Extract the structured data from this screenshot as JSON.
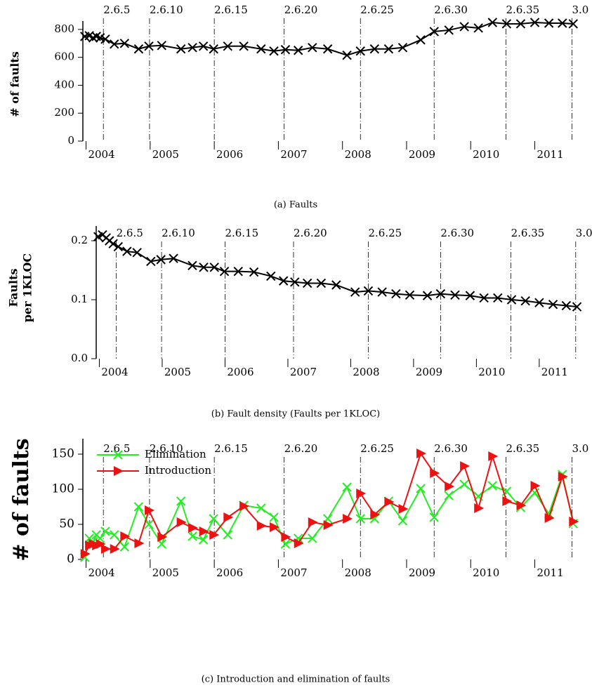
{
  "chart_data": [
    {
      "type": "line",
      "caption": "(a)  Faults",
      "ylabel": [
        "# of faults"
      ],
      "x": [
        2003.98,
        2004.05,
        2004.11,
        2004.16,
        2004.22,
        2004.3,
        2004.44,
        2004.6,
        2004.82,
        2004.98,
        2005.18,
        2005.48,
        2005.66,
        2005.83,
        2005.99,
        2006.21,
        2006.46,
        2006.73,
        2006.93,
        2007.11,
        2007.31,
        2007.53,
        2007.77,
        2008.07,
        2008.28,
        2008.5,
        2008.72,
        2008.94,
        2009.22,
        2009.43,
        2009.66,
        2009.9,
        2010.12,
        2010.34,
        2010.56,
        2010.78,
        2011.0,
        2011.22,
        2011.43,
        2011.6
      ],
      "series": [
        {
          "color": "#000000",
          "marker": "x",
          "values": [
            750,
            755,
            740,
            750,
            740,
            730,
            695,
            700,
            660,
            680,
            685,
            660,
            670,
            680,
            660,
            680,
            680,
            660,
            645,
            655,
            650,
            670,
            660,
            615,
            645,
            660,
            660,
            670,
            725,
            785,
            795,
            820,
            810,
            850,
            840,
            840,
            850,
            845,
            845,
            840
          ]
        }
      ],
      "xlim": [
        2003.95,
        2011.75
      ],
      "xticks": [
        2004,
        2005,
        2006,
        2007,
        2008,
        2009,
        2010,
        2011
      ],
      "ylim": [
        0,
        860
      ],
      "yticks": [
        0,
        200,
        400,
        600,
        800
      ],
      "versions": [
        {
          "label": "2.6.5",
          "x": 2004.27
        },
        {
          "label": "2.6.10",
          "x": 2004.99
        },
        {
          "label": "2.6.15",
          "x": 2006.0
        },
        {
          "label": "2.6.20",
          "x": 2007.09
        },
        {
          "label": "2.6.25",
          "x": 2008.28
        },
        {
          "label": "2.6.30",
          "x": 2009.43
        },
        {
          "label": "2.6.35",
          "x": 2010.55
        },
        {
          "label": "3.0",
          "x": 2011.58
        }
      ]
    },
    {
      "type": "line",
      "caption": "(b)  Fault density (Faults per 1KLOC)",
      "ylabel": [
        "Faults",
        "per 1KLOC"
      ],
      "x": [
        2003.98,
        2004.05,
        2004.11,
        2004.16,
        2004.22,
        2004.3,
        2004.44,
        2004.6,
        2004.82,
        2004.98,
        2005.18,
        2005.48,
        2005.66,
        2005.83,
        2005.99,
        2006.21,
        2006.46,
        2006.73,
        2006.93,
        2007.11,
        2007.31,
        2007.53,
        2007.77,
        2008.07,
        2008.28,
        2008.5,
        2008.72,
        2008.94,
        2009.22,
        2009.43,
        2009.66,
        2009.9,
        2010.12,
        2010.34,
        2010.56,
        2010.78,
        2011.0,
        2011.22,
        2011.43,
        2011.6
      ],
      "series": [
        {
          "color": "#000000",
          "marker": "x",
          "values": [
            0.207,
            0.21,
            0.205,
            0.2,
            0.195,
            0.19,
            0.182,
            0.18,
            0.165,
            0.168,
            0.17,
            0.158,
            0.155,
            0.155,
            0.148,
            0.148,
            0.147,
            0.14,
            0.132,
            0.13,
            0.128,
            0.128,
            0.125,
            0.113,
            0.115,
            0.113,
            0.11,
            0.108,
            0.107,
            0.11,
            0.108,
            0.107,
            0.103,
            0.103,
            0.1,
            0.098,
            0.095,
            0.092,
            0.09,
            0.088
          ]
        }
      ],
      "xlim": [
        2003.95,
        2011.75
      ],
      "xticks": [
        2004,
        2005,
        2006,
        2007,
        2008,
        2009,
        2010,
        2011
      ],
      "ylim": [
        0,
        0.225
      ],
      "yticks": [
        {
          "value": 0,
          "label": "0.0"
        },
        0.1,
        0.2
      ],
      "versions": [
        {
          "label": "2.6.5",
          "x": 2004.27
        },
        {
          "label": "2.6.10",
          "x": 2004.99
        },
        {
          "label": "2.6.15",
          "x": 2006.0
        },
        {
          "label": "2.6.20",
          "x": 2007.09
        },
        {
          "label": "2.6.25",
          "x": 2008.28
        },
        {
          "label": "2.6.30",
          "x": 2009.43
        },
        {
          "label": "2.6.35",
          "x": 2010.55
        },
        {
          "label": "3.0",
          "x": 2011.58
        }
      ]
    },
    {
      "type": "line",
      "caption": "(c)  Introduction and elimination of faults",
      "ylabel": [
        "# of faults"
      ],
      "x": [
        2003.98,
        2004.05,
        2004.11,
        2004.16,
        2004.22,
        2004.3,
        2004.44,
        2004.6,
        2004.82,
        2004.98,
        2005.18,
        2005.48,
        2005.66,
        2005.83,
        2005.99,
        2006.21,
        2006.46,
        2006.73,
        2006.93,
        2007.11,
        2007.31,
        2007.53,
        2007.77,
        2008.07,
        2008.28,
        2008.5,
        2008.72,
        2008.94,
        2009.22,
        2009.43,
        2009.66,
        2009.9,
        2010.12,
        2010.34,
        2010.56,
        2010.78,
        2011.0,
        2011.22,
        2011.43,
        2011.6
      ],
      "series": [
        {
          "name": "Elimination",
          "color": "#22ee22",
          "marker": "x",
          "values": [
            3,
            30,
            25,
            35,
            30,
            40,
            35,
            18,
            75,
            50,
            22,
            83,
            33,
            28,
            58,
            35,
            77,
            73,
            60,
            22,
            30,
            30,
            58,
            103,
            58,
            58,
            83,
            55,
            101,
            60,
            91,
            107,
            90,
            105,
            97,
            74,
            95,
            65,
            121,
            51
          ]
        },
        {
          "name": "Introduction",
          "color": "#ee1111",
          "marker": "triangle",
          "values": [
            8,
            20,
            22,
            20,
            22,
            15,
            15,
            33,
            23,
            70,
            32,
            53,
            45,
            40,
            35,
            60,
            76,
            48,
            46,
            32,
            23,
            53,
            49,
            58,
            94,
            64,
            82,
            72,
            151,
            123,
            104,
            133,
            73,
            147,
            83,
            77,
            105,
            59,
            118,
            54
          ]
        }
      ],
      "xlim": [
        2003.95,
        2011.75
      ],
      "xticks": [
        2004,
        2005,
        2006,
        2007,
        2008,
        2009,
        2010,
        2011
      ],
      "ylim": [
        0,
        172
      ],
      "yticks": [
        0,
        50,
        100,
        150
      ],
      "legend": "upper left",
      "versions": [
        {
          "label": "2.6.5",
          "x": 2004.27
        },
        {
          "label": "2.6.10",
          "x": 2004.99
        },
        {
          "label": "2.6.15",
          "x": 2006.0
        },
        {
          "label": "2.6.20",
          "x": 2007.09
        },
        {
          "label": "2.6.25",
          "x": 2008.28
        },
        {
          "label": "2.6.30",
          "x": 2009.43
        },
        {
          "label": "2.6.35",
          "x": 2010.55
        },
        {
          "label": "3.0",
          "x": 2011.58
        }
      ]
    }
  ]
}
